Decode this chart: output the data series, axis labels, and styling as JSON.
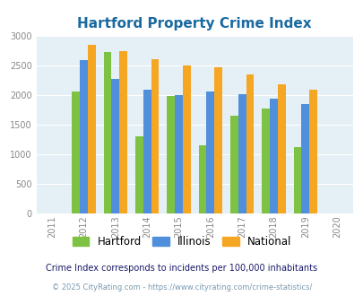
{
  "title": "Hartford Property Crime Index",
  "years": [
    2011,
    2012,
    2013,
    2014,
    2015,
    2016,
    2017,
    2018,
    2019,
    2020
  ],
  "hartford": [
    null,
    2050,
    2720,
    1300,
    1975,
    1150,
    1650,
    1760,
    1120,
    null
  ],
  "illinois": [
    null,
    2580,
    2270,
    2090,
    1990,
    2050,
    2010,
    1940,
    1850,
    null
  ],
  "national": [
    null,
    2850,
    2740,
    2600,
    2490,
    2460,
    2350,
    2180,
    2090,
    null
  ],
  "colors": {
    "hartford": "#7dc242",
    "illinois": "#4f8fdb",
    "national": "#f5a623"
  },
  "ylim": [
    0,
    3000
  ],
  "yticks": [
    0,
    500,
    1000,
    1500,
    2000,
    2500,
    3000
  ],
  "bg_color": "#e4f0f5",
  "legend_labels": [
    "Hartford",
    "Illinois",
    "National"
  ],
  "footnote1": "Crime Index corresponds to incidents per 100,000 inhabitants",
  "footnote2": "© 2025 CityRating.com - https://www.cityrating.com/crime-statistics/",
  "title_color": "#1a6aa0",
  "footnote1_color": "#1a1a6a",
  "footnote2_color": "#7a9ab0"
}
